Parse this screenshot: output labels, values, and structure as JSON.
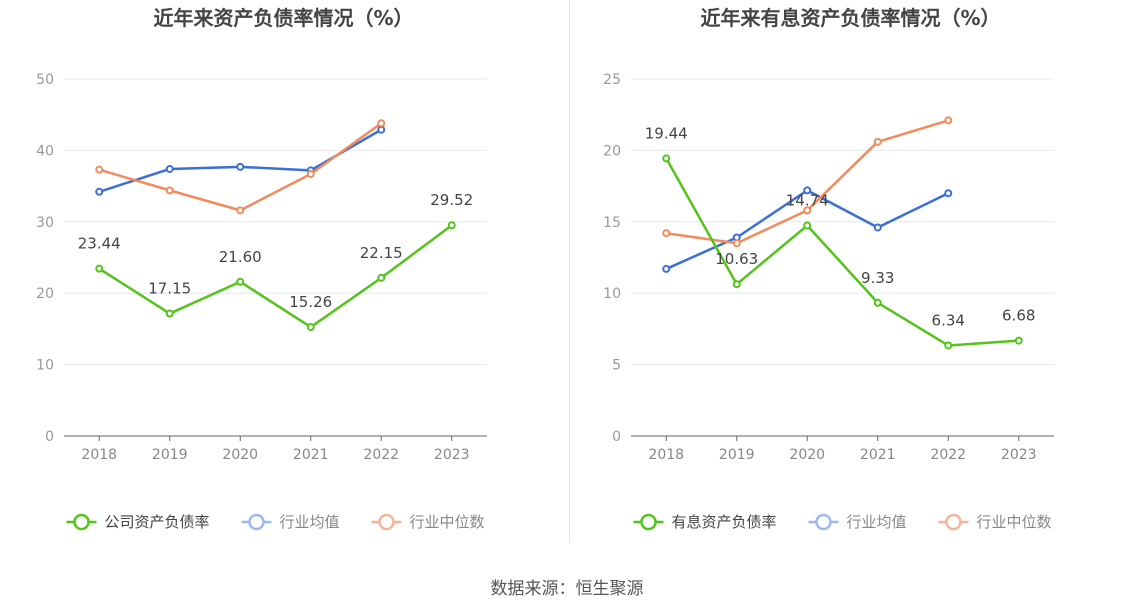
{
  "charts": [
    {
      "title": "近年来资产负债率情况（%）",
      "chart_data": {
        "type": "line",
        "title": "近年来资产负债率情况（%）",
        "categories": [
          "2018",
          "2019",
          "2020",
          "2021",
          "2022",
          "2023"
        ],
        "ylim": [
          0,
          50
        ],
        "yticks": [
          0,
          10,
          20,
          30,
          40,
          50
        ],
        "grid": true,
        "legend_position": "bottom",
        "series": [
          {
            "name": "公司资产负债率",
            "color": "#52c41a",
            "values": [
              23.44,
              17.15,
              21.6,
              15.26,
              22.15,
              29.52
            ],
            "labels": [
              "23.44",
              "17.15",
              "21.60",
              "15.26",
              "22.15",
              "29.52"
            ]
          },
          {
            "name": "行业均值",
            "color": "#3a6fd9",
            "values": [
              34.2,
              37.4,
              37.7,
              37.2,
              42.9,
              null
            ],
            "labels": null
          },
          {
            "name": "行业中位数",
            "color": "#f28a5b",
            "values": [
              37.3,
              34.4,
              31.6,
              36.7,
              43.8,
              null
            ],
            "labels": null
          }
        ]
      }
    },
    {
      "title": "近年来有息资产负债率情况（%）",
      "chart_data": {
        "type": "line",
        "title": "近年来有息资产负债率情况（%）",
        "categories": [
          "2018",
          "2019",
          "2020",
          "2021",
          "2022",
          "2023"
        ],
        "ylim": [
          0,
          25
        ],
        "yticks": [
          0,
          5,
          10,
          15,
          20,
          25
        ],
        "grid": true,
        "legend_position": "bottom",
        "series": [
          {
            "name": "有息资产负债率",
            "color": "#52c41a",
            "values": [
              19.44,
              10.63,
              14.74,
              9.33,
              6.34,
              6.68
            ],
            "labels": [
              "19.44",
              "10.63",
              "14.74",
              "9.33",
              "6.34",
              "6.68"
            ]
          },
          {
            "name": "行业均值",
            "color": "#3a6fd9",
            "values": [
              11.7,
              13.9,
              17.2,
              14.6,
              17.0,
              null
            ],
            "labels": null
          },
          {
            "name": "行业中位数",
            "color": "#f28a5b",
            "values": [
              14.2,
              13.5,
              15.8,
              20.6,
              22.1,
              null
            ],
            "labels": null
          }
        ]
      }
    }
  ],
  "source": "数据来源：恒生聚源"
}
